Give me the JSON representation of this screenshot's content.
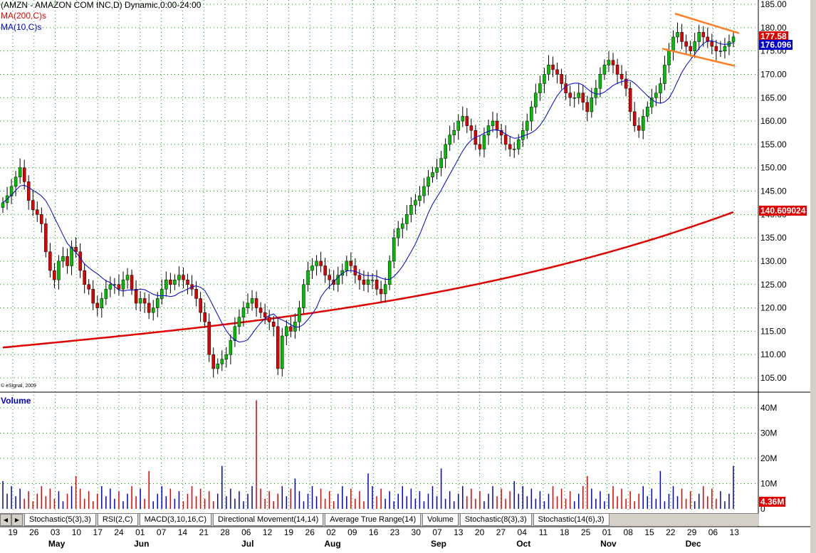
{
  "header": {
    "title": "(AMZN - AMAZON COM INC,D) Dynamic,0:00-24:00",
    "ma200_label": "MA(200,C)s",
    "ma10_label": "MA(10,C)s",
    "copyright": "© eSignal, 2009",
    "volume_label": "Volume"
  },
  "badges": {
    "last_price": "177.58",
    "ma10": "176.096",
    "ma200": "140.609024",
    "volume": "4.36M"
  },
  "tabs": [
    {
      "label": "Stochastic(5(3),3)"
    },
    {
      "label": "RSI(2,C)"
    },
    {
      "label": "MACD(3,10,16,C)"
    },
    {
      "label": "Directional Movement(14,14)"
    },
    {
      "label": "Average True Range(14)"
    },
    {
      "label": "Volume"
    },
    {
      "label": "Stochastic(8(3),3)"
    },
    {
      "label": "Stochastic(14(6),3)"
    }
  ],
  "colors": {
    "up": "#00c000",
    "down": "#e00000",
    "ma200": "#e00000",
    "ma10": "#0000cc",
    "trendline": "#ff7f27",
    "grid": "#00a000",
    "volume_down": "#e00000",
    "volume_up": "#0000cc"
  },
  "chart_data": {
    "type": "candlestick",
    "symbol": "AMZN",
    "price_axis": {
      "ticks": [
        "185.00",
        "180.00",
        "175.00",
        "170.00",
        "165.00",
        "160.00",
        "155.00",
        "150.00",
        "145.00",
        "140.00",
        "135.00",
        "130.00",
        "125.00",
        "120.00",
        "115.00",
        "110.00",
        "105.00"
      ],
      "ylim": [
        102.5,
        185
      ]
    },
    "volume_axis": {
      "ticks": [
        "40M",
        "30M",
        "20M",
        "10M",
        "0"
      ],
      "ylim": [
        0,
        44
      ]
    },
    "date_ticks": [
      "19",
      "26",
      "03",
      "10",
      "17",
      "24",
      "01",
      "07",
      "14",
      "21",
      "28",
      "06",
      "12",
      "19",
      "26",
      "02",
      "09",
      "16",
      "23",
      "30",
      "07",
      "13",
      "20",
      "27",
      "04",
      "11",
      "18",
      "25",
      "01",
      "08",
      "15",
      "22",
      "29",
      "06",
      "13"
    ],
    "months": [
      "May",
      "Jun",
      "Jul",
      "Aug",
      "Sep",
      "Oct",
      "Nov",
      "Dec"
    ],
    "month_tick_index": [
      2,
      6,
      11,
      15,
      20,
      24,
      28,
      32
    ],
    "closes": [
      142.5,
      144,
      146,
      148,
      150,
      147,
      143,
      141,
      140,
      138,
      132,
      128,
      126,
      130,
      131,
      129,
      133,
      132,
      128,
      125,
      124,
      121,
      120,
      122,
      124,
      125,
      125,
      124,
      126,
      127,
      124,
      121,
      122,
      121,
      119,
      120,
      122,
      124,
      126,
      125,
      126,
      127,
      126,
      125,
      124,
      122,
      119,
      117,
      110,
      107,
      108,
      109,
      110,
      113,
      116,
      118,
      120,
      121,
      122,
      120,
      119,
      118,
      117,
      116,
      107,
      114,
      116,
      115,
      117,
      120,
      125,
      128,
      129,
      130,
      129,
      127,
      126,
      125,
      127,
      128,
      130,
      129,
      127,
      126,
      125,
      126,
      126,
      124,
      123,
      125,
      130,
      135,
      137,
      138,
      140,
      142,
      143,
      144,
      146,
      148,
      149,
      150,
      152,
      155,
      157,
      158,
      160,
      161,
      159,
      158,
      155,
      154,
      157,
      159,
      160,
      158,
      157,
      155,
      154,
      154,
      156,
      158,
      160,
      163,
      166,
      168,
      170,
      172,
      171,
      170,
      168,
      166,
      165,
      165,
      166,
      164,
      162,
      165,
      167,
      170,
      172,
      173,
      172,
      170,
      169,
      167,
      162,
      159,
      158,
      161,
      163,
      165,
      166,
      168,
      172,
      175,
      178,
      179,
      177,
      176,
      175,
      177,
      179,
      178,
      177,
      176,
      175,
      175,
      176,
      177,
      178
    ]
  }
}
